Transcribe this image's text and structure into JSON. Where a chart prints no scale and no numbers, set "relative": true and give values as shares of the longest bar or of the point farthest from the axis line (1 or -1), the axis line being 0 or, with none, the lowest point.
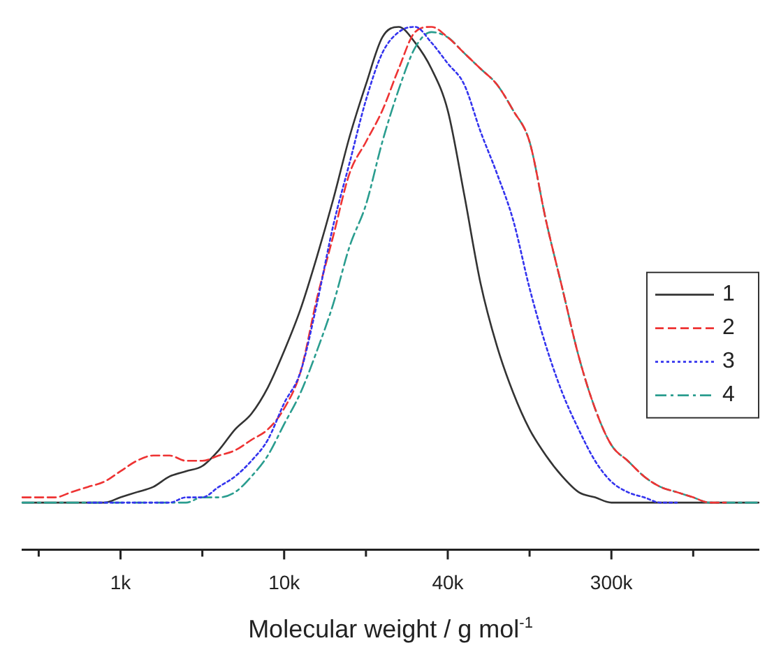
{
  "chart_data": {
    "type": "line",
    "relative": true,
    "xlabel": "Molecular weight / g mol$^{-1}$",
    "legend": "right",
    "grid": false,
    "marker": "none",
    "tick_labels": "x",
    "categories": [
      null,
      null,
      null,
      null,
      null,
      null,
      "1k",
      null,
      null,
      null,
      null,
      null,
      null,
      null,
      null,
      null,
      "10k",
      null,
      null,
      null,
      null,
      null,
      null,
      null,
      null,
      null,
      "40k",
      null,
      null,
      null,
      null,
      null,
      null,
      null,
      null,
      null,
      "300k",
      null,
      null,
      null,
      null,
      null,
      null,
      null,
      null,
      null
    ],
    "series": [
      {
        "name": "1",
        "color": "#333333",
        "line_style": "solid",
        "values": [
          0.09,
          0.09,
          0.09,
          0.09,
          0.09,
          0.09,
          0.1,
          0.11,
          0.12,
          0.14,
          0.15,
          0.16,
          0.19,
          0.23,
          0.26,
          0.31,
          0.38,
          0.46,
          0.56,
          0.67,
          0.79,
          0.89,
          0.98,
          1.0,
          0.97,
          0.92,
          0.84,
          0.68,
          0.51,
          0.39,
          0.3,
          0.23,
          0.18,
          0.14,
          0.11,
          0.1,
          0.09,
          0.09,
          0.09,
          0.09,
          0.09,
          0.09,
          0.09,
          0.09,
          0.09,
          0.09
        ]
      },
      {
        "name": "2",
        "color": "#ee3333",
        "line_style": "dashed",
        "values": [
          0.1,
          0.1,
          0.1,
          0.11,
          0.12,
          0.13,
          0.15,
          0.17,
          0.18,
          0.18,
          0.17,
          0.17,
          0.18,
          0.19,
          0.21,
          0.23,
          0.27,
          0.34,
          0.48,
          0.6,
          0.72,
          0.78,
          0.84,
          0.92,
          0.99,
          1.0,
          0.98,
          0.95,
          0.92,
          0.89,
          0.84,
          0.78,
          0.63,
          0.5,
          0.37,
          0.27,
          0.2,
          0.17,
          0.14,
          0.12,
          0.11,
          0.1,
          0.09,
          0.09,
          null,
          null
        ]
      },
      {
        "name": "3",
        "color": "#3333ee",
        "line_style": "dotted",
        "values": [
          null,
          null,
          null,
          null,
          0.09,
          0.09,
          0.09,
          0.09,
          0.09,
          0.09,
          0.1,
          0.1,
          0.12,
          0.14,
          0.17,
          0.21,
          0.28,
          0.34,
          0.47,
          0.62,
          0.74,
          0.86,
          0.95,
          0.99,
          1.0,
          0.97,
          0.93,
          0.89,
          0.8,
          0.72,
          0.63,
          0.5,
          0.39,
          0.3,
          0.23,
          0.17,
          0.13,
          0.11,
          0.1,
          0.09,
          0.09,
          null,
          null,
          null,
          null,
          null
        ]
      },
      {
        "name": "4",
        "color": "#2a9d8f",
        "line_style": "dashdot",
        "values": [
          0.09,
          0.09,
          0.09,
          0.09,
          0.09,
          0.09,
          0.09,
          0.09,
          0.09,
          0.09,
          0.09,
          0.1,
          0.1,
          0.11,
          0.14,
          0.18,
          0.24,
          0.3,
          0.38,
          0.47,
          0.58,
          0.66,
          0.78,
          0.88,
          0.96,
          0.99,
          0.98,
          0.95,
          0.92,
          0.89,
          0.84,
          0.78,
          0.63,
          0.5,
          0.37,
          0.27,
          0.2,
          0.17,
          0.14,
          0.12,
          0.11,
          0.1,
          0.09,
          0.09,
          0.09,
          0.09
        ]
      }
    ]
  }
}
